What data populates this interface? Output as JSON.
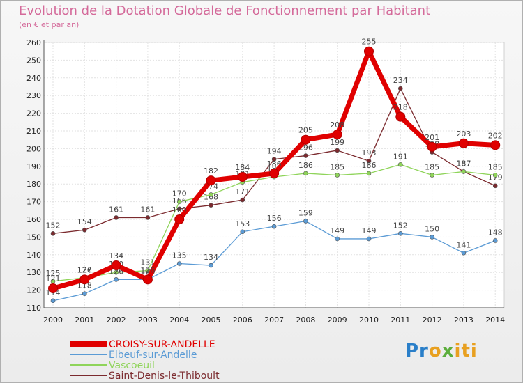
{
  "chart_data": {
    "type": "line",
    "title": "Evolution de la Dotation Globale de Fonctionnement par Habitant",
    "subtitle": "(en € et par an)",
    "x": [
      "2000",
      "2001",
      "2002",
      "2003",
      "2004",
      "2005",
      "2006",
      "2007",
      "2008",
      "2009",
      "2010",
      "2011",
      "2012",
      "2013",
      "2014"
    ],
    "ylim": [
      110,
      260
    ],
    "yticks": [
      110,
      120,
      130,
      140,
      150,
      160,
      170,
      180,
      190,
      200,
      210,
      220,
      230,
      240,
      250,
      260
    ],
    "series": [
      {
        "name": "Saint-Denis-le-Thiboult",
        "color": "#7b2a2e",
        "values": [
          152,
          154,
          161,
          161,
          166,
          168,
          171,
          194,
          196,
          199,
          193,
          234,
          198,
          187,
          179
        ]
      },
      {
        "name": "Vascoeuil",
        "color": "#8fd45a",
        "values": [
          125,
          127,
          130,
          131,
          170,
          174,
          181,
          184,
          186,
          185,
          186,
          191,
          185,
          187,
          185
        ]
      },
      {
        "name": "Elbeuf-sur-Andelle",
        "color": "#5b9bd5",
        "values": [
          114,
          118,
          126,
          126,
          135,
          134,
          153,
          156,
          159,
          149,
          149,
          152,
          150,
          141,
          148
        ]
      },
      {
        "name": "CROISY-SUR-ANDELLE",
        "color": "#e00000",
        "values": [
          121,
          126,
          134,
          126,
          160,
          182,
          184,
          186,
          205,
          208,
          255,
          218,
          201,
          203,
          202
        ]
      }
    ],
    "legend": [
      {
        "name": "CROISY-SUR-ANDELLE",
        "color": "#e00000"
      },
      {
        "name": "Elbeuf-sur-Andelle",
        "color": "#5b9bd5"
      },
      {
        "name": "Vascoeuil",
        "color": "#8fd45a"
      },
      {
        "name": "Saint-Denis-le-Thiboult",
        "color": "#7b2a2e"
      }
    ]
  },
  "logo": {
    "p1": "Pr",
    "p2": "o",
    "p3": "x",
    "p4": "iti"
  }
}
